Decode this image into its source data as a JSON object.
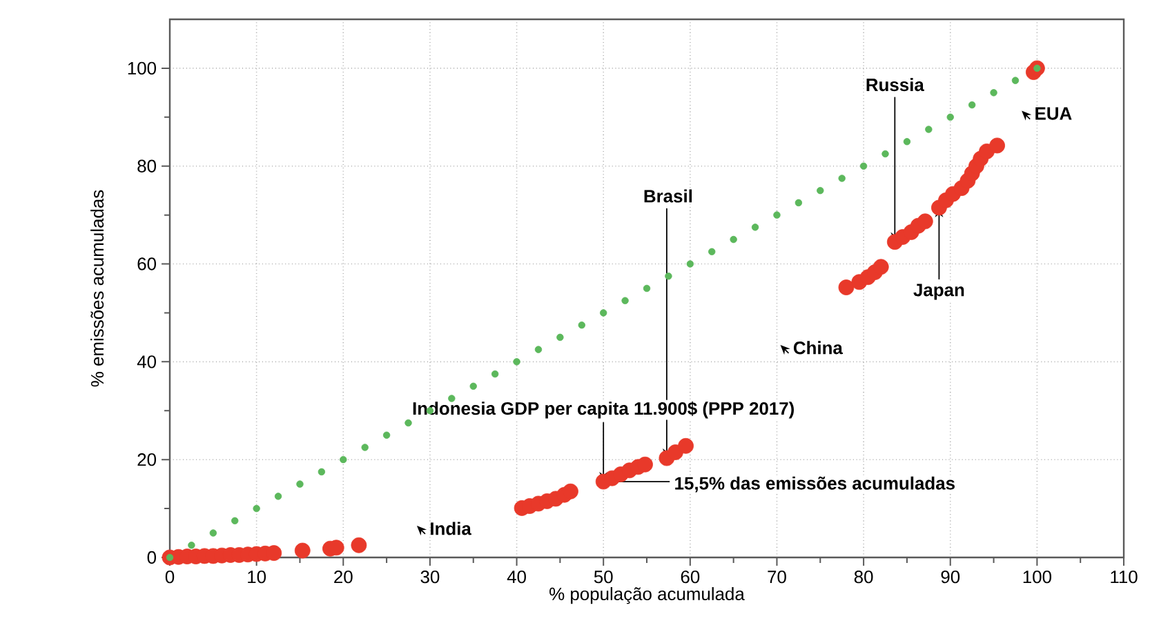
{
  "chart_data": {
    "type": "scatter",
    "xlabel": "% população acumulada",
    "ylabel": "% emissões acumuladas",
    "xlim": [
      0,
      110
    ],
    "ylim": [
      0,
      110
    ],
    "xticks": [
      0,
      10,
      20,
      30,
      40,
      50,
      60,
      70,
      80,
      90,
      100,
      110
    ],
    "yticks": [
      0,
      20,
      40,
      60,
      80,
      100
    ],
    "grid": true,
    "series": [
      {
        "color": "#e8392a",
        "x": [
          0,
          1,
          2,
          3,
          4,
          5,
          6,
          7,
          8,
          9,
          10,
          11,
          12,
          15.3,
          18.5,
          19.2,
          21.8,
          40.6,
          41.5,
          42.5,
          43.5,
          44.5,
          45.5,
          46.2,
          50,
          51,
          52,
          53,
          54,
          54.8,
          57.3,
          58.3,
          59.5,
          78,
          79.5,
          80.5,
          81.3,
          82,
          83.6,
          84.5,
          85.5,
          86.3,
          87.1,
          88.7,
          89.5,
          90.3,
          91.3,
          92,
          92.5,
          93,
          93.5,
          94.2,
          95.4,
          99.6,
          100
        ],
        "values": [
          0,
          0.1,
          0.2,
          0.2,
          0.3,
          0.3,
          0.4,
          0.5,
          0.5,
          0.6,
          0.7,
          0.8,
          0.9,
          1.4,
          1.8,
          2,
          2.5,
          10.1,
          10.5,
          11,
          11.5,
          12,
          12.8,
          13.5,
          15.5,
          16.2,
          17,
          17.8,
          18.5,
          19,
          20.3,
          21.5,
          22.8,
          55.2,
          56.3,
          57.3,
          58.3,
          59.4,
          64.5,
          65.5,
          66.5,
          67.8,
          68.7,
          71.5,
          73,
          74.3,
          75.5,
          77,
          78.5,
          80,
          81.5,
          83,
          84.2,
          99.2,
          100
        ]
      },
      {
        "color": "#5cb85c",
        "x": [
          0,
          2.5,
          5,
          7.5,
          10,
          12.5,
          15,
          17.5,
          20,
          22.5,
          25,
          27.5,
          30,
          32.5,
          35,
          37.5,
          40,
          42.5,
          45,
          47.5,
          50,
          52.5,
          55,
          57.5,
          60,
          62.5,
          65,
          67.5,
          70,
          72.5,
          75,
          77.5,
          80,
          82.5,
          85,
          87.5,
          90,
          92.5,
          95,
          97.5,
          100
        ],
        "values": [
          0,
          2.5,
          5,
          7.5,
          10,
          12.5,
          15,
          17.5,
          20,
          22.5,
          25,
          27.5,
          30,
          32.5,
          35,
          37.5,
          40,
          42.5,
          45,
          47.5,
          50,
          52.5,
          55,
          57.5,
          60,
          62.5,
          65,
          67.5,
          70,
          72.5,
          75,
          77.5,
          80,
          82.5,
          85,
          87.5,
          90,
          92.5,
          95,
          97.5,
          100
        ]
      }
    ],
    "annotations": [
      {
        "text": "Russia",
        "x": 83.6,
        "y": 64.5
      },
      {
        "text": "Japan",
        "x": 88.7,
        "y": 71.5
      },
      {
        "text": "Brasil",
        "x": 57.3,
        "y": 20.3
      },
      {
        "text": "Indonesia GDP per capita 11.900$ (PPP 2017)",
        "x": 50,
        "y": 15.5
      },
      {
        "text": "15,5% das emissões acumuladas",
        "x": 50,
        "y": 15.5
      },
      "India",
      "China",
      "EUA"
    ]
  }
}
